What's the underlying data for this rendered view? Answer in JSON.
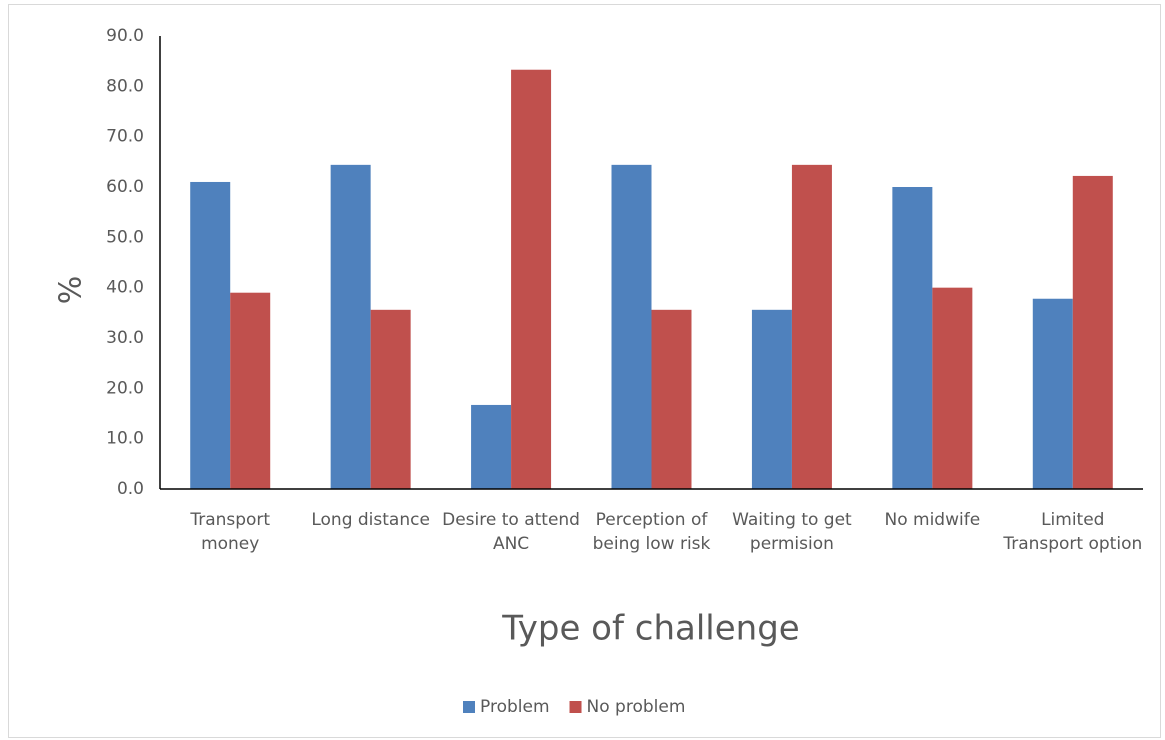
{
  "chart_data": {
    "type": "bar",
    "categories": [
      "Transport money",
      "Long distance",
      "Desire to attend ANC",
      "Perception of being low risk",
      "Waiting to get permision",
      "No midwife",
      "Limited Transport option"
    ],
    "series": [
      {
        "name": "Problem",
        "color": "#4f81bd",
        "values": [
          61.0,
          64.4,
          16.7,
          64.4,
          35.6,
          60.0,
          37.8
        ]
      },
      {
        "name": "No problem",
        "color": "#c0504d",
        "values": [
          39.0,
          35.6,
          83.3,
          35.6,
          64.4,
          40.0,
          62.2
        ]
      }
    ],
    "ylabel": "%",
    "xlabel": "Type of challenge",
    "ylim": [
      0,
      90
    ],
    "yticks": [
      {
        "value": 0,
        "label": "0.0"
      },
      {
        "value": 10,
        "label": "10.0"
      },
      {
        "value": 20,
        "label": "20.0"
      },
      {
        "value": 30,
        "label": "30.0"
      },
      {
        "value": 40,
        "label": "40.0"
      },
      {
        "value": 50,
        "label": "50.0"
      },
      {
        "value": 60,
        "label": "60.0"
      },
      {
        "value": 70,
        "label": "70.0"
      },
      {
        "value": 80,
        "label": "80.0"
      },
      {
        "value": 90,
        "label": "90.0"
      }
    ],
    "legend": "bottom",
    "grid": false
  }
}
